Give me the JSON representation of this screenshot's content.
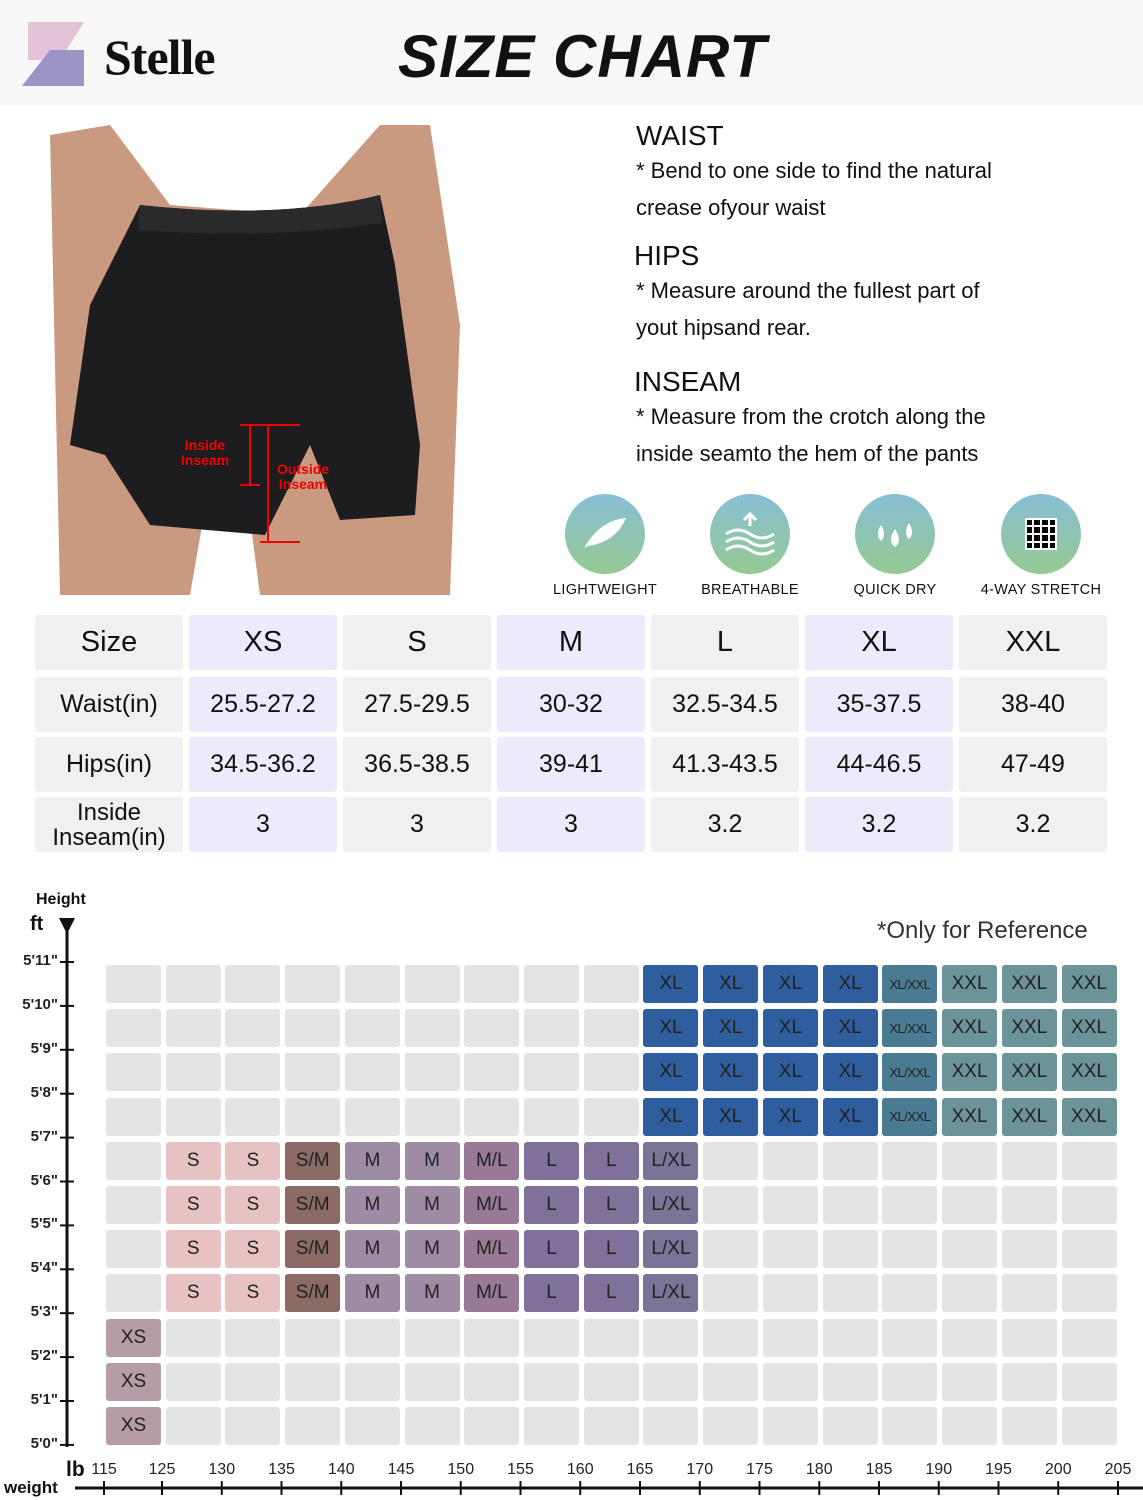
{
  "header": {
    "brand": "Stelle",
    "title": "SIZE CHART"
  },
  "photo": {
    "inside_label": "Inside Inseam",
    "outside_label": "Outside Inseam"
  },
  "guide": [
    {
      "heading": "WAIST",
      "lines": [
        "* Bend to one side to find the natural",
        "crease ofyour waist"
      ]
    },
    {
      "heading": "HIPS",
      "lines": [
        "* Measure around the fullest part of",
        "yout hipsand rear."
      ]
    },
    {
      "heading": "INSEAM",
      "lines": [
        "* Measure from the crotch along the",
        "inside seamto the hem of the pants"
      ]
    }
  ],
  "features": [
    {
      "label": "LIGHTWEIGHT",
      "icon": "feather-icon"
    },
    {
      "label": "BREATHABLE",
      "icon": "airflow-icon"
    },
    {
      "label": "QUICK DRY",
      "icon": "water-drops-icon"
    },
    {
      "label": "4-WAY STRETCH",
      "icon": "stretch-mesh-icon"
    }
  ],
  "size_table": {
    "header": [
      "Size",
      "XS",
      "S",
      "M",
      "L",
      "XL",
      "XXL"
    ],
    "rows": [
      [
        "Waist(in)",
        "25.5-27.2",
        "27.5-29.5",
        "30-32",
        "32.5-34.5",
        "35-37.5",
        "38-40"
      ],
      [
        "Hips(in)",
        "34.5-36.2",
        "36.5-38.5",
        "39-41",
        "41.3-43.5",
        "44-46.5",
        "47-49"
      ],
      [
        "Inside\nInseam(in)",
        "3",
        "3",
        "3",
        "3.2",
        "3.2",
        "3.2"
      ]
    ],
    "colors": {
      "highlight": "#eeeafc",
      "plain": "#f0f0f0"
    }
  },
  "chart_data": {
    "type": "heatmap",
    "note": "*Only for Reference",
    "ylabel": "Height",
    "yunit": "ft",
    "xlabel": "weight",
    "xunit": "lb",
    "y_ticks": [
      "5'11\"",
      "5'10\"",
      "5'9\"",
      "5'8\"",
      "5'7\"",
      "5'6\"",
      "5'5\"",
      "5'4\"",
      "5'3\"",
      "5'2\"",
      "5'1\"",
      "5'0\""
    ],
    "x_ticks": [
      "115",
      "125",
      "130",
      "135",
      "140",
      "145",
      "150",
      "155",
      "160",
      "165",
      "170",
      "175",
      "180",
      "185",
      "190",
      "195",
      "200",
      "205"
    ],
    "cells": [
      [
        "",
        "",
        "",
        "",
        "",
        "",
        "",
        "",
        "",
        "XL",
        "XL",
        "XL",
        "XL",
        "XL/XXL",
        "XXL",
        "XXL",
        "XXL"
      ],
      [
        "",
        "",
        "",
        "",
        "",
        "",
        "",
        "",
        "",
        "XL",
        "XL",
        "XL",
        "XL",
        "XL/XXL",
        "XXL",
        "XXL",
        "XXL"
      ],
      [
        "",
        "",
        "",
        "",
        "",
        "",
        "",
        "",
        "",
        "XL",
        "XL",
        "XL",
        "XL",
        "XL/XXL",
        "XXL",
        "XXL",
        "XXL"
      ],
      [
        "",
        "",
        "",
        "",
        "",
        "",
        "",
        "",
        "",
        "XL",
        "XL",
        "XL",
        "XL",
        "XL/XXL",
        "XXL",
        "XXL",
        "XXL"
      ],
      [
        "",
        "S",
        "S",
        "S/M",
        "M",
        "M",
        "M/L",
        "L",
        "L",
        "L/XL",
        "",
        "",
        "",
        "",
        "",
        "",
        ""
      ],
      [
        "",
        "S",
        "S",
        "S/M",
        "M",
        "M",
        "M/L",
        "L",
        "L",
        "L/XL",
        "",
        "",
        "",
        "",
        "",
        "",
        ""
      ],
      [
        "",
        "S",
        "S",
        "S/M",
        "M",
        "M",
        "M/L",
        "L",
        "L",
        "L/XL",
        "",
        "",
        "",
        "",
        "",
        "",
        ""
      ],
      [
        "",
        "S",
        "S",
        "S/M",
        "M",
        "M",
        "M/L",
        "L",
        "L",
        "L/XL",
        "",
        "",
        "",
        "",
        "",
        "",
        ""
      ],
      [
        "XS",
        "",
        "",
        "",
        "",
        "",
        "",
        "",
        "",
        "",
        "",
        "",
        "",
        "",
        "",
        "",
        ""
      ],
      [
        "XS",
        "",
        "",
        "",
        "",
        "",
        "",
        "",
        "",
        "",
        "",
        "",
        "",
        "",
        "",
        "",
        ""
      ],
      [
        "XS",
        "",
        "",
        "",
        "",
        "",
        "",
        "",
        "",
        "",
        "",
        "",
        "",
        "",
        "",
        "",
        ""
      ]
    ],
    "colors": {
      "empty": "#e4e4e4",
      "XS": "#b59ca6",
      "S": "#e6c3c2",
      "S/M": "#8c6b67",
      "M": "#9d8ca3",
      "M/L": "#987a97",
      "L": "#7f7199",
      "L/XL": "#7a7499",
      "XL": "#2f5e9e",
      "XL/XXL": "#4b7b92",
      "XXL": "#6c9498"
    }
  }
}
